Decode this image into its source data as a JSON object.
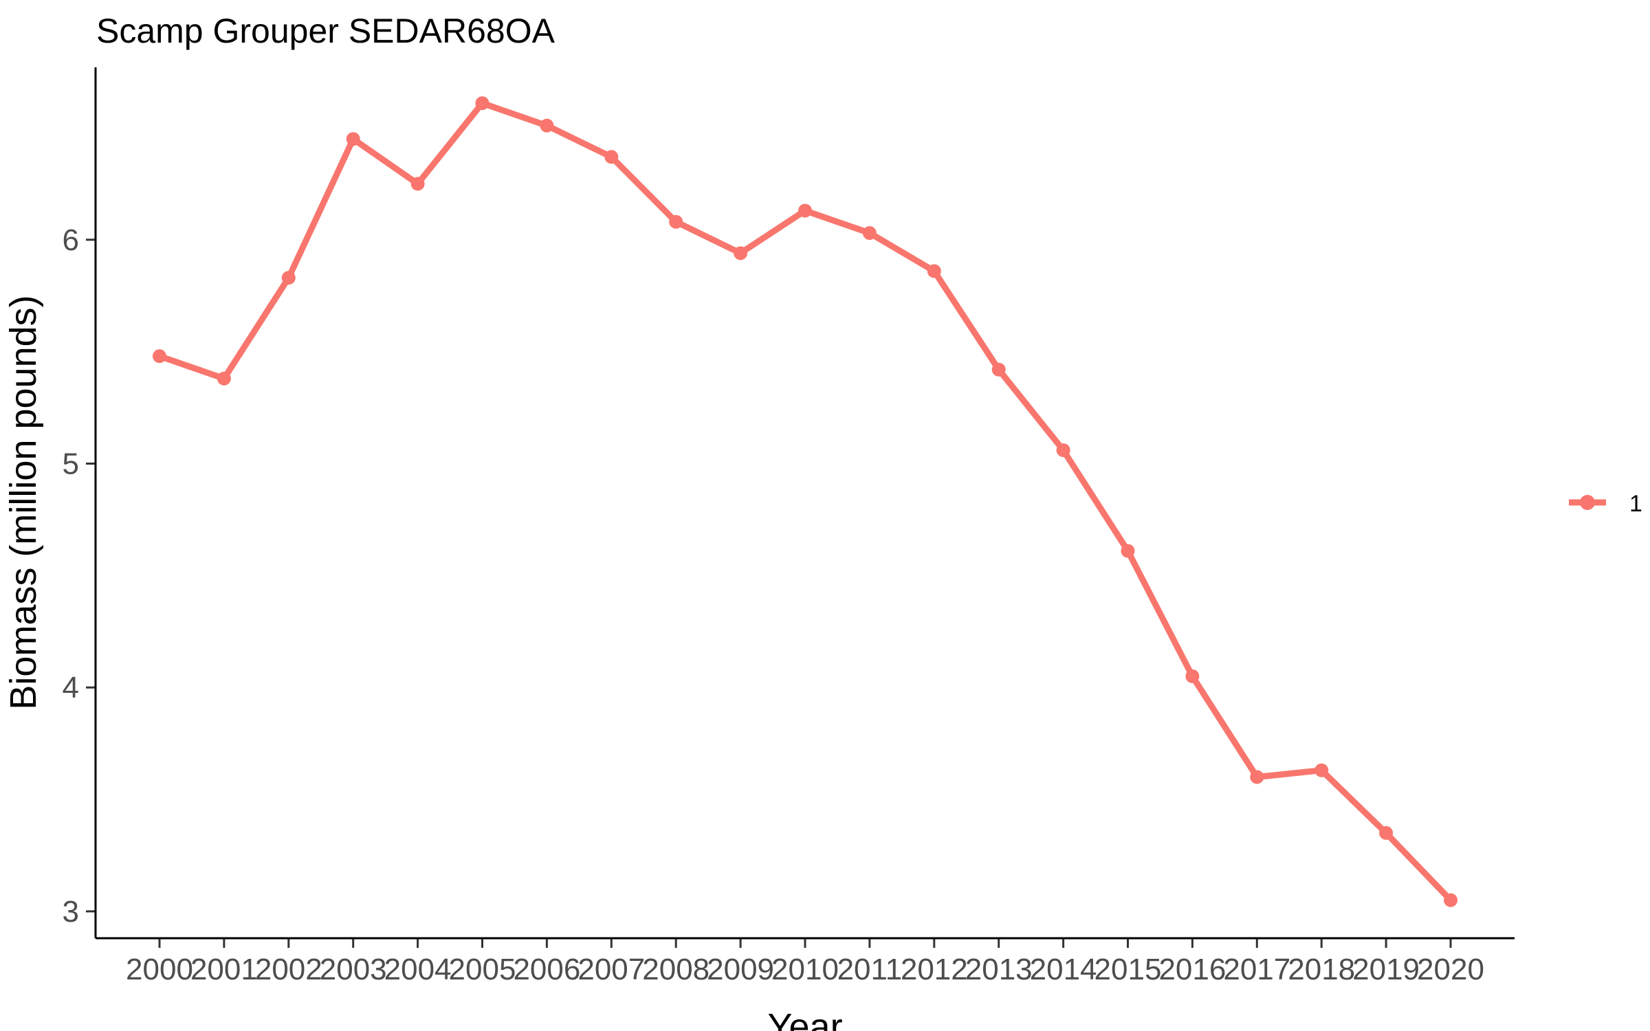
{
  "colors": {
    "series": "#F8766D",
    "axis": "#000000",
    "tick_text": "#4d4d4d",
    "background": "#ffffff"
  },
  "chart_data": {
    "type": "line",
    "title": "Scamp Grouper SEDAR68OA",
    "xlabel": "Year",
    "ylabel": "Biomass (million pounds)",
    "x": [
      "2000",
      "2001",
      "2002",
      "2003",
      "2004",
      "2005",
      "2006",
      "2007",
      "2008",
      "2009",
      "2010",
      "2011",
      "2012",
      "2013",
      "2014",
      "2015",
      "2016",
      "2017",
      "2018",
      "2019",
      "2020"
    ],
    "series": [
      {
        "name": "1",
        "values": [
          5.48,
          5.38,
          5.83,
          6.45,
          6.25,
          6.61,
          6.51,
          6.37,
          6.08,
          5.94,
          6.13,
          6.03,
          5.86,
          5.42,
          5.06,
          4.61,
          4.05,
          3.6,
          3.63,
          3.35,
          3.05
        ]
      }
    ],
    "yticks": [
      3,
      4,
      5,
      6
    ],
    "ylim": [
      2.88,
      6.77
    ],
    "grid": false,
    "legend_position": "right",
    "markers": true
  }
}
